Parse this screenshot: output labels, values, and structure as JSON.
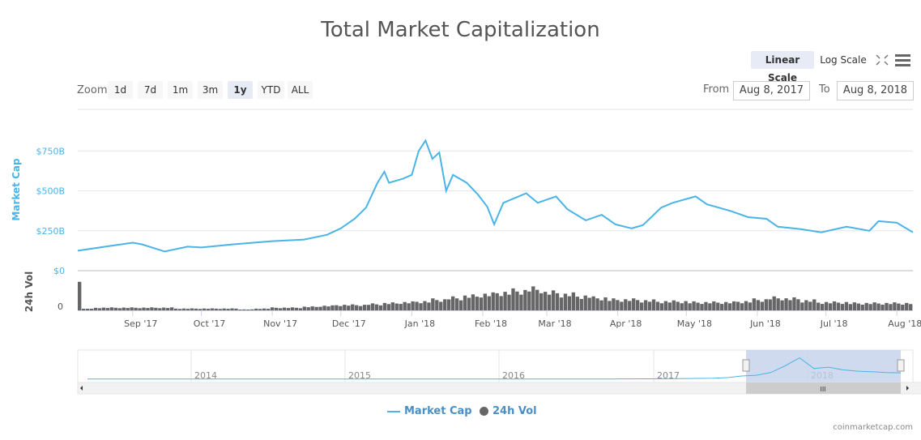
{
  "title": "Total Market Capitalization",
  "scale_buttons": {
    "linear": "Linear Scale",
    "log": "Log Scale",
    "selected": "linear"
  },
  "zoom": {
    "label": "Zoom",
    "buttons": [
      "1d",
      "7d",
      "1m",
      "3m",
      "1y",
      "YTD",
      "ALL"
    ],
    "selected": "1y"
  },
  "range": {
    "from_label": "From",
    "from": "Aug 8, 2017",
    "to_label": "To",
    "to": "Aug 8, 2018"
  },
  "legend": {
    "market_cap": "Market Cap",
    "volume": "24h Vol"
  },
  "credits": "coinmarketcap.com",
  "colors": {
    "market_cap": "#4ab4e6",
    "volume": "#666666",
    "nav_mask": "#c3d1ea"
  },
  "chart_data": {
    "type": "line",
    "title": "Total Market Capitalization",
    "ylabel": "Market Cap",
    "ylabel2": "24h Vol",
    "ylim": [
      0,
      1000
    ],
    "y_ticks": [
      "$0",
      "$250B",
      "$500B",
      "$750B"
    ],
    "y_tick_values": [
      0,
      250,
      500,
      750
    ],
    "vol_ticks": [
      "0"
    ],
    "x_ticks": [
      "Sep '17",
      "Oct '17",
      "Nov '17",
      "Dec '17",
      "Jan '18",
      "Feb '18",
      "Mar '18",
      "Apr '18",
      "May '18",
      "Jun '18",
      "Jul '18",
      "Aug '18"
    ],
    "x_tick_dates": [
      "2017-09-01",
      "2017-10-01",
      "2017-11-01",
      "2017-12-01",
      "2018-01-01",
      "2018-02-01",
      "2018-03-01",
      "2018-04-01",
      "2018-05-01",
      "2018-06-01",
      "2018-07-01",
      "2018-08-01"
    ],
    "x_range": [
      "2017-08-08",
      "2018-08-08"
    ],
    "series": [
      {
        "name": "Market Cap",
        "unit": "$B",
        "points": [
          [
            "2017-08-08",
            125
          ],
          [
            "2017-08-20",
            150
          ],
          [
            "2017-09-01",
            175
          ],
          [
            "2017-09-05",
            165
          ],
          [
            "2017-09-15",
            120
          ],
          [
            "2017-09-25",
            150
          ],
          [
            "2017-10-01",
            145
          ],
          [
            "2017-10-15",
            165
          ],
          [
            "2017-11-01",
            185
          ],
          [
            "2017-11-15",
            195
          ],
          [
            "2017-11-25",
            225
          ],
          [
            "2017-12-01",
            265
          ],
          [
            "2017-12-07",
            325
          ],
          [
            "2017-12-12",
            395
          ],
          [
            "2017-12-17",
            550
          ],
          [
            "2017-12-20",
            620
          ],
          [
            "2017-12-22",
            550
          ],
          [
            "2017-12-28",
            575
          ],
          [
            "2018-01-01",
            600
          ],
          [
            "2018-01-04",
            750
          ],
          [
            "2018-01-07",
            815
          ],
          [
            "2018-01-10",
            700
          ],
          [
            "2018-01-13",
            740
          ],
          [
            "2018-01-16",
            500
          ],
          [
            "2018-01-19",
            600
          ],
          [
            "2018-01-25",
            550
          ],
          [
            "2018-01-30",
            475
          ],
          [
            "2018-02-03",
            400
          ],
          [
            "2018-02-06",
            290
          ],
          [
            "2018-02-10",
            425
          ],
          [
            "2018-02-20",
            485
          ],
          [
            "2018-02-25",
            425
          ],
          [
            "2018-03-05",
            465
          ],
          [
            "2018-03-10",
            385
          ],
          [
            "2018-03-18",
            315
          ],
          [
            "2018-03-25",
            350
          ],
          [
            "2018-03-31",
            290
          ],
          [
            "2018-04-07",
            265
          ],
          [
            "2018-04-12",
            285
          ],
          [
            "2018-04-20",
            395
          ],
          [
            "2018-04-25",
            425
          ],
          [
            "2018-05-05",
            465
          ],
          [
            "2018-05-10",
            415
          ],
          [
            "2018-05-20",
            375
          ],
          [
            "2018-05-28",
            335
          ],
          [
            "2018-06-05",
            325
          ],
          [
            "2018-06-10",
            275
          ],
          [
            "2018-06-20",
            260
          ],
          [
            "2018-06-29",
            240
          ],
          [
            "2018-07-10",
            275
          ],
          [
            "2018-07-20",
            250
          ],
          [
            "2018-07-24",
            310
          ],
          [
            "2018-08-01",
            300
          ],
          [
            "2018-08-08",
            240
          ]
        ]
      },
      {
        "name": "24h Vol",
        "unit": "relative",
        "values": [
          40,
          3,
          3,
          3,
          3,
          3,
          2,
          2,
          2,
          2,
          1,
          2,
          3,
          3,
          4,
          5,
          6,
          6,
          7,
          8,
          9,
          10,
          12,
          14,
          16,
          18,
          20,
          22,
          24,
          20,
          18,
          16,
          14,
          12,
          12,
          11,
          10,
          10,
          9,
          9,
          9,
          10,
          12,
          14,
          13,
          11,
          9,
          9,
          8,
          8,
          8,
          8
        ]
      }
    ],
    "navigator": {
      "x_ticks": [
        "2014",
        "2015",
        "2016",
        "2017",
        "2018"
      ],
      "values": [
        10,
        10,
        10,
        10,
        10,
        9,
        8,
        7,
        6,
        6,
        6,
        6,
        7,
        7,
        8,
        9,
        10,
        14,
        20,
        35,
        60,
        120,
        150,
        250,
        500,
        800,
        400,
        450,
        350,
        300,
        280,
        250,
        240
      ]
    }
  }
}
